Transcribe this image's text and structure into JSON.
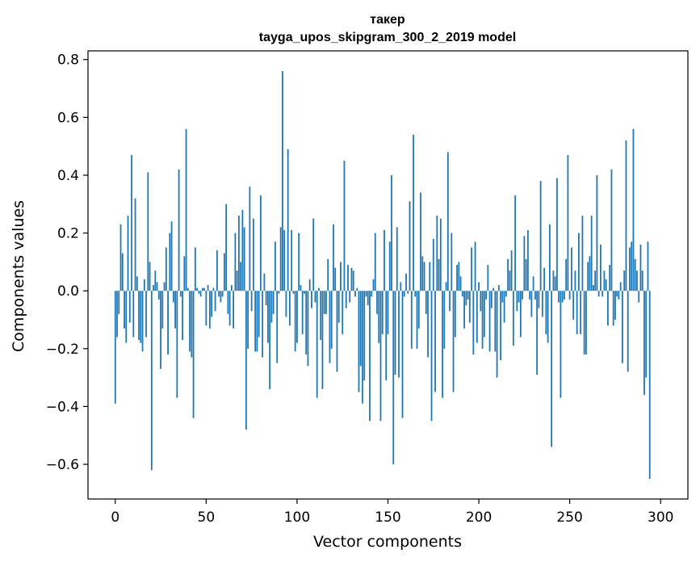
{
  "chart_data": {
    "type": "bar",
    "title_line1": "такер",
    "title_line2": "tayga_upos_skipgram_300_2_2019 model",
    "xlabel": "Vector components",
    "ylabel": "Components values",
    "xlim": [
      -15,
      315
    ],
    "ylim": [
      -0.72,
      0.83
    ],
    "xticks": [
      0,
      50,
      100,
      150,
      200,
      250,
      300
    ],
    "xtick_labels": [
      "0",
      "50",
      "100",
      "150",
      "200",
      "250",
      "300"
    ],
    "yticks": [
      -0.6,
      -0.4,
      -0.2,
      0.0,
      0.2,
      0.4,
      0.6,
      0.8
    ],
    "ytick_labels": [
      "−0.6",
      "−0.4",
      "−0.2",
      "0.0",
      "0.2",
      "0.4",
      "0.6",
      "0.8"
    ],
    "bar_color": "#1f77b4",
    "grid": false,
    "values": [
      -0.39,
      -0.16,
      -0.08,
      0.23,
      0.13,
      -0.13,
      -0.18,
      0.26,
      -0.11,
      0.47,
      -0.16,
      0.32,
      0.05,
      -0.17,
      -0.18,
      -0.21,
      0.04,
      -0.16,
      0.41,
      0.1,
      -0.62,
      0.02,
      0.07,
      0.03,
      -0.03,
      -0.27,
      -0.13,
      0.03,
      0.15,
      -0.22,
      0.2,
      0.24,
      -0.04,
      -0.13,
      -0.37,
      0.42,
      -0.02,
      -0.17,
      0.12,
      0.56,
      0.01,
      -0.21,
      -0.23,
      -0.44,
      0.15,
      0.01,
      -0.01,
      -0.02,
      0.01,
      0.01,
      -0.12,
      0.02,
      -0.13,
      -0.09,
      0.01,
      -0.07,
      0.14,
      -0.02,
      -0.04,
      -0.02,
      0.13,
      0.3,
      -0.08,
      -0.12,
      0.02,
      -0.13,
      0.2,
      0.07,
      0.26,
      0.1,
      0.28,
      0.22,
      -0.48,
      -0.2,
      0.36,
      -0.07,
      0.25,
      -0.21,
      -0.21,
      -0.16,
      0.33,
      -0.23,
      0.06,
      -0.05,
      -0.18,
      -0.34,
      -0.11,
      -0.08,
      0.17,
      -0.25,
      -0.01,
      0.22,
      0.76,
      0.21,
      -0.09,
      0.49,
      -0.12,
      0.21,
      -0.01,
      -0.21,
      -0.18,
      0.2,
      0.02,
      -0.15,
      -0.01,
      -0.22,
      -0.26,
      0.04,
      -0.06,
      0.25,
      -0.04,
      -0.37,
      0.01,
      -0.17,
      -0.34,
      -0.08,
      -0.08,
      0.11,
      -0.25,
      -0.2,
      0.23,
      0.08,
      -0.28,
      -0.11,
      0.1,
      -0.15,
      0.45,
      -0.06,
      0.09,
      -0.04,
      0.08,
      0.07,
      -0.02,
      0.01,
      -0.35,
      -0.26,
      -0.39,
      -0.31,
      -0.02,
      -0.05,
      -0.45,
      -0.02,
      0.04,
      0.2,
      -0.08,
      -0.18,
      -0.45,
      -0.15,
      0.21,
      -0.31,
      -0.15,
      0.17,
      0.4,
      -0.6,
      -0.29,
      0.22,
      -0.3,
      0.03,
      -0.44,
      -0.02,
      0.06,
      -0.01,
      0.31,
      -0.2,
      0.54,
      -0.02,
      -0.2,
      -0.13,
      0.34,
      0.12,
      0.1,
      -0.08,
      -0.23,
      0.1,
      -0.45,
      0.18,
      -0.35,
      0.26,
      0.11,
      0.25,
      -0.37,
      -0.2,
      0.03,
      0.48,
      -0.07,
      0.2,
      -0.35,
      -0.16,
      0.09,
      0.1,
      0.05,
      -0.02,
      -0.13,
      -0.05,
      -0.03,
      -0.11,
      0.15,
      -0.22,
      0.17,
      -0.18,
      0.03,
      -0.07,
      -0.2,
      -0.16,
      -0.03,
      0.09,
      -0.21,
      -0.06,
      0.01,
      -0.21,
      -0.3,
      0.02,
      -0.24,
      -0.04,
      -0.11,
      -0.02,
      0.11,
      0.07,
      0.14,
      -0.19,
      0.33,
      -0.07,
      -0.04,
      -0.16,
      -0.03,
      0.19,
      0.11,
      0.21,
      -0.03,
      -0.09,
      0.05,
      -0.03,
      -0.29,
      -0.06,
      0.38,
      -0.09,
      0.08,
      -0.15,
      -0.18,
      0.23,
      -0.54,
      0.07,
      0.05,
      0.39,
      -0.04,
      -0.37,
      -0.04,
      -0.03,
      0.11,
      0.47,
      -0.03,
      0.15,
      -0.1,
      0.07,
      -0.15,
      0.2,
      -0.15,
      0.26,
      -0.22,
      -0.22,
      0.1,
      0.12,
      0.26,
      0.02,
      0.07,
      0.4,
      -0.02,
      0.16,
      -0.02,
      0.07,
      0.04,
      -0.12,
      0.09,
      0.42,
      -0.12,
      -0.1,
      -0.02,
      -0.03,
      0.03,
      -0.25,
      0.07,
      0.52,
      -0.28,
      0.15,
      0.17,
      0.56,
      0.11,
      0.07,
      -0.04,
      0.16,
      0.07,
      -0.36,
      -0.3,
      0.17,
      -0.65
    ]
  }
}
